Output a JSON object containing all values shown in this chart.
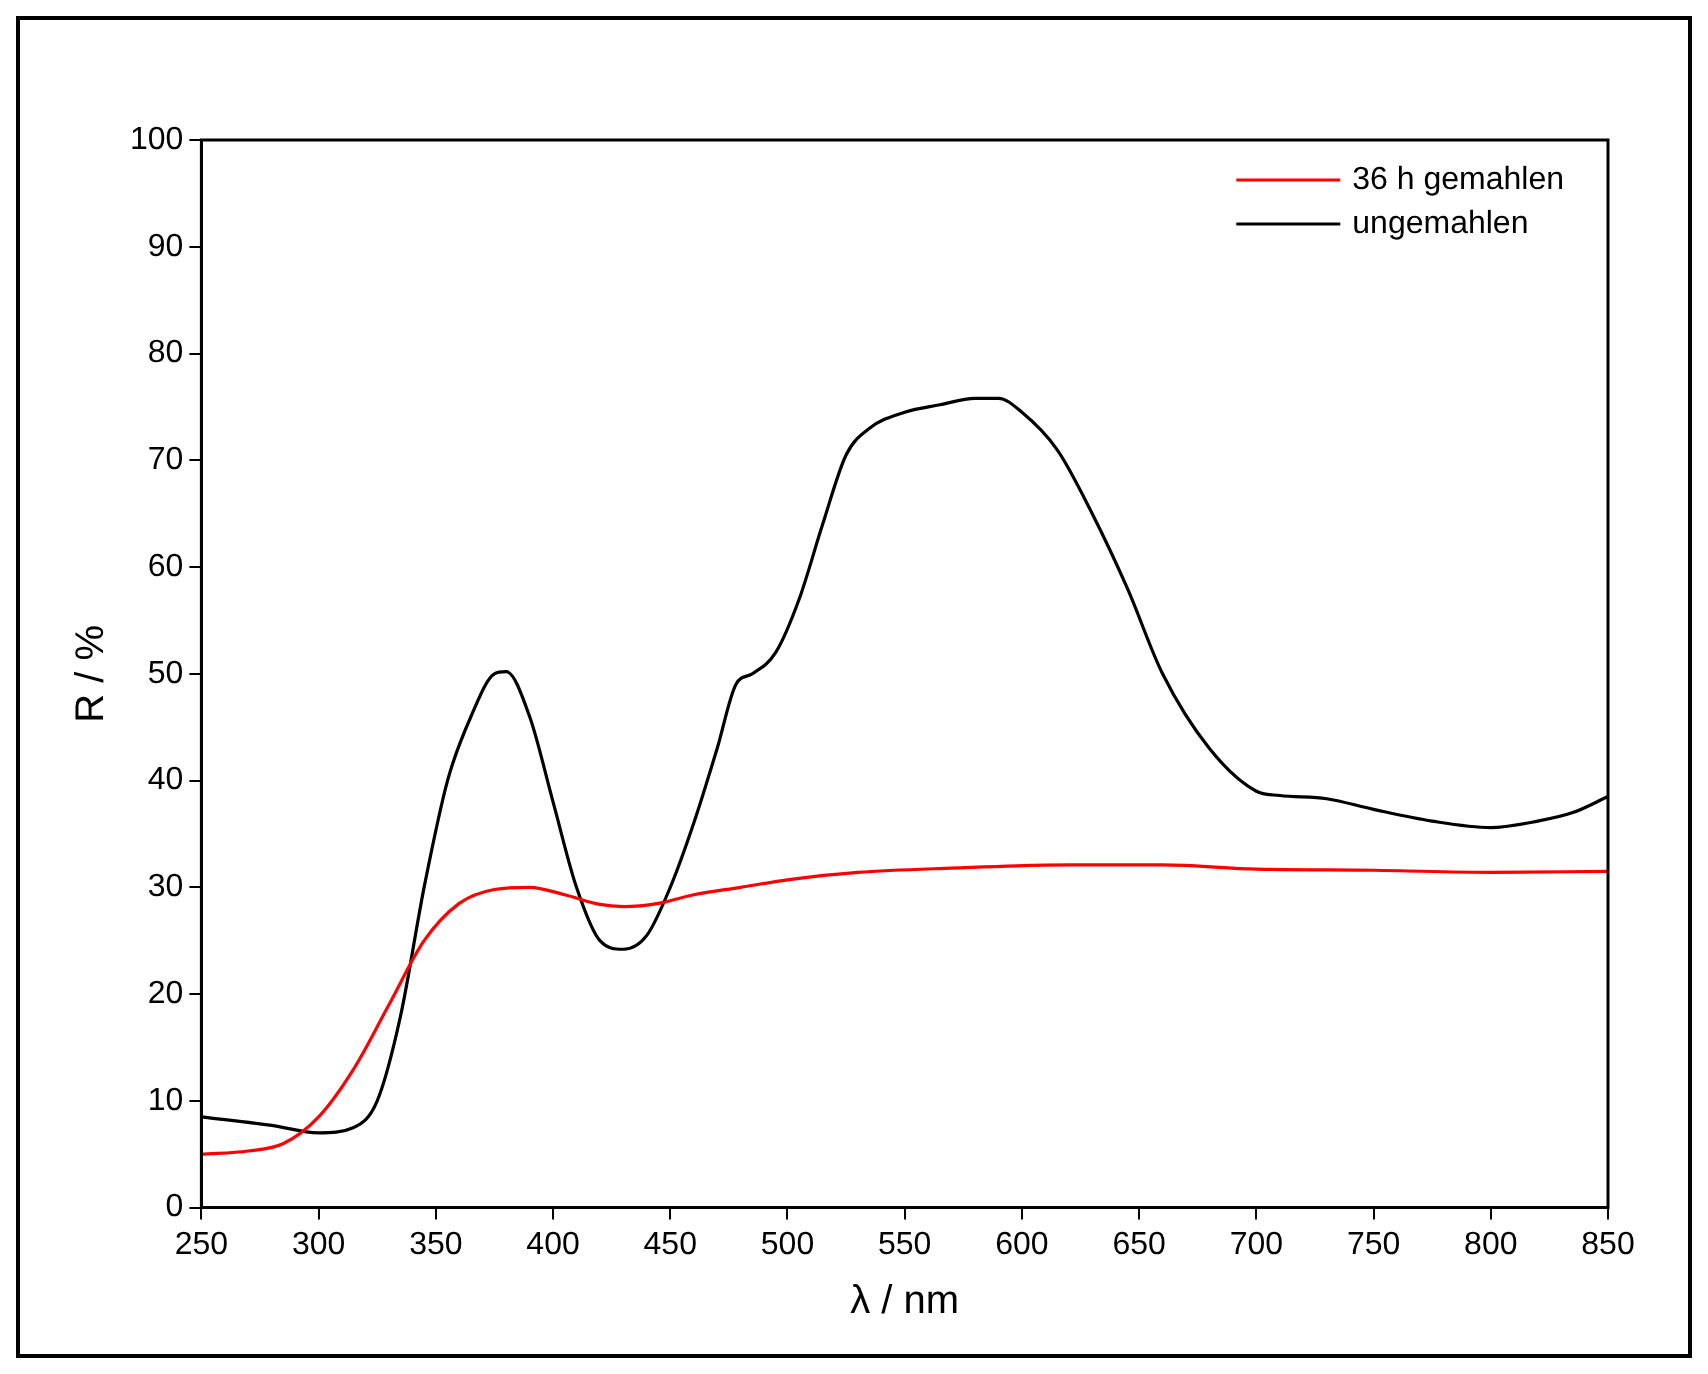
{
  "chart_data": {
    "type": "line",
    "xlabel": "λ / nm",
    "ylabel": "R / %",
    "xlim": [
      250,
      850
    ],
    "xticks": [
      250,
      300,
      350,
      400,
      450,
      500,
      550,
      600,
      650,
      700,
      750,
      800,
      850
    ],
    "ylim": [
      0,
      100
    ],
    "yticks": [
      0,
      10,
      20,
      30,
      40,
      50,
      60,
      70,
      80,
      90,
      100
    ],
    "grid": false,
    "legend": "top right",
    "marker": "none",
    "line_style": "solid",
    "series": [
      {
        "name": "36 h gemahlen",
        "color": "#ff0000",
        "x": [
          250,
          270,
          285,
          300,
          315,
          330,
          345,
          360,
          375,
          390,
          405,
          420,
          430,
          445,
          460,
          480,
          500,
          530,
          570,
          620,
          660,
          700,
          750,
          800,
          850
        ],
        "values": [
          5,
          5.3,
          6,
          8.5,
          13,
          19,
          25,
          28.5,
          29.8,
          30,
          29.3,
          28.4,
          28.2,
          28.5,
          29.3,
          30,
          30.7,
          31.4,
          31.8,
          32.1,
          32.1,
          31.7,
          31.6,
          31.4,
          31.5
        ]
      },
      {
        "name": "ungemahlen",
        "color": "#000000",
        "x": [
          250,
          280,
          300,
          315,
          325,
          335,
          345,
          355,
          365,
          375,
          380,
          390,
          400,
          410,
          420,
          430,
          440,
          450,
          460,
          470,
          478,
          485,
          495,
          505,
          515,
          525,
          535,
          550,
          565,
          580,
          590,
          600,
          615,
          630,
          645,
          660,
          680,
          700,
          710,
          730,
          750,
          775,
          800,
          820,
          835,
          850
        ],
        "values": [
          8.5,
          7.7,
          7,
          7.5,
          10,
          18,
          30,
          40,
          46,
          50,
          50.2,
          46,
          38,
          30,
          25,
          24.2,
          25.5,
          30,
          36,
          43,
          49,
          50,
          52,
          57,
          64,
          70.5,
          73,
          74.5,
          75.2,
          75.8,
          75.8,
          74.5,
          71,
          65,
          58,
          50,
          43,
          39,
          38.6,
          38.3,
          37.3,
          36.2,
          35.6,
          36.2,
          37,
          38.5
        ]
      }
    ]
  }
}
